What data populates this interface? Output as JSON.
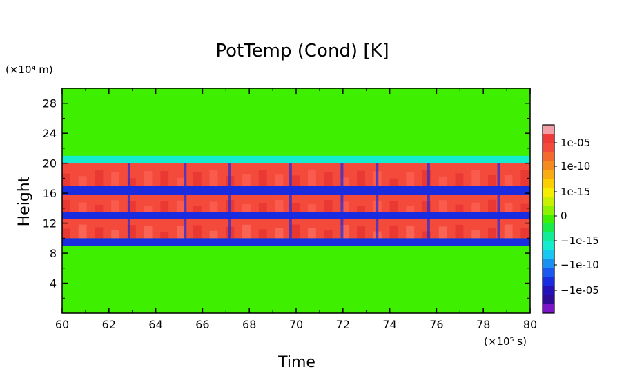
{
  "chart_data": {
    "type": "heatmap",
    "title": "PotTemp (Cond) [K]",
    "xlabel": "Time",
    "ylabel": "Height",
    "x_unit": "(×10⁵ s)",
    "y_unit": "(×10⁴ m)",
    "xlim": [
      60,
      80
    ],
    "ylim": [
      0,
      30
    ],
    "x_ticks": [
      "60",
      "62",
      "64",
      "66",
      "68",
      "70",
      "72",
      "74",
      "76",
      "78",
      "80"
    ],
    "y_ticks": [
      "4",
      "8",
      "12",
      "16",
      "20",
      "24",
      "28"
    ],
    "colorbar": {
      "labels": [
        "1e-05",
        "1e-10",
        "1e-15",
        "0",
        "−1e-15",
        "−1e-10",
        "−1e-05"
      ],
      "colors": [
        "#f2a0a8",
        "#ee3a38",
        "#f34a3c",
        "#f46a2c",
        "#f58a1e",
        "#f8ac12",
        "#fad000",
        "#f5ee00",
        "#c8f000",
        "#8cf200",
        "#3ef000",
        "#16ec4a",
        "#12ec98",
        "#14ecd0",
        "#18c8f0",
        "#1a90f0",
        "#1a58f0",
        "#1a2ce0",
        "#2412b8",
        "#300c96",
        "#7a16c8"
      ]
    },
    "bands": [
      {
        "name": "background",
        "from": 0,
        "to": 30,
        "value": "0"
      },
      {
        "name": "upper-cyan-fringe",
        "from": 19.5,
        "to": 21,
        "value": "-1e-15"
      },
      {
        "name": "upper-warm-layer",
        "from": 17,
        "to": 20,
        "value": "1e-05"
      },
      {
        "name": "blue-band-1",
        "from": 15.8,
        "to": 17,
        "value": "-1e-05"
      },
      {
        "name": "middle-warm-layer",
        "from": 13.5,
        "to": 15.8,
        "value": "1e-05"
      },
      {
        "name": "blue-band-2",
        "from": 12.6,
        "to": 13.5,
        "value": "-1e-05"
      },
      {
        "name": "lower-warm-layer",
        "from": 10,
        "to": 12.6,
        "value": "1e-05"
      },
      {
        "name": "lower-blue-fringe",
        "from": 9,
        "to": 10,
        "value": "-1e-05"
      }
    ]
  }
}
